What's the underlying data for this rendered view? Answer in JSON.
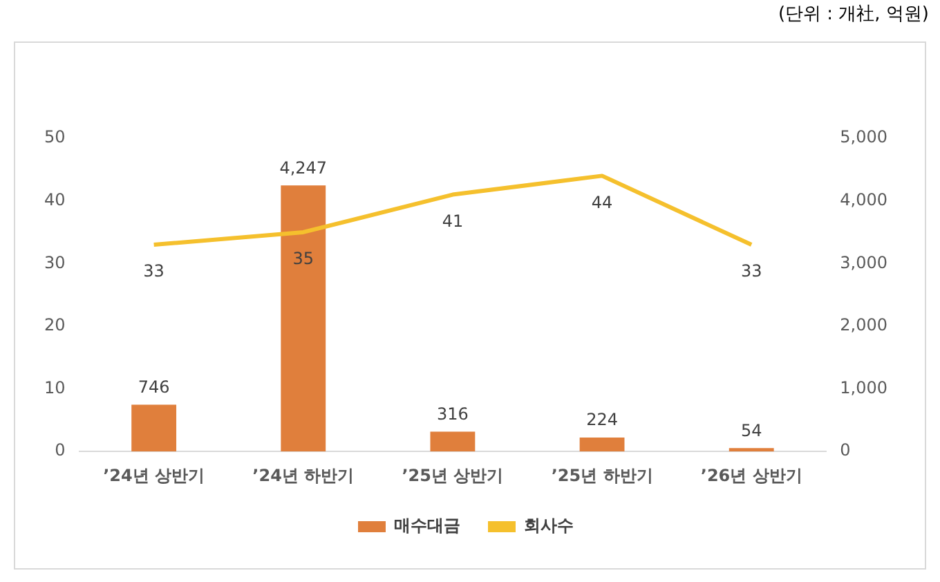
{
  "chart_data": {
    "type": "bar",
    "categories": [
      "’24년 상반기",
      "’24년 하반기",
      "’25년 상반기",
      "’25년 하반기",
      "’26년 상반기"
    ],
    "series": [
      {
        "name": "매수대금",
        "axis": "y2",
        "color": "#e07f3c",
        "values": [
          746,
          4247,
          316,
          224,
          54
        ],
        "value_labels": [
          "746",
          "4,247",
          "316",
          "224",
          "54"
        ]
      },
      {
        "name": "회사수",
        "type": "line",
        "axis": "y",
        "color": "#f5c02d",
        "values": [
          33,
          35,
          41,
          44,
          33
        ],
        "value_labels": [
          "33",
          "35",
          "41",
          "44",
          "33"
        ]
      }
    ],
    "ylim": [
      0,
      50
    ],
    "yticks": [
      0,
      10,
      20,
      30,
      40,
      50
    ],
    "y2lim": [
      0,
      5000
    ],
    "y2ticks": [
      0,
      {
        "value": 1000,
        "label": "1,000"
      },
      {
        "value": 2000,
        "label": "2,000"
      },
      {
        "value": 3000,
        "label": "3,000"
      },
      {
        "value": 4000,
        "label": "4,000"
      },
      {
        "value": 5000,
        "label": "5,000"
      }
    ],
    "grid": false,
    "legend": "bottom",
    "marker": "none",
    "annotations": [
      "(단위 : 개社, 억원)"
    ]
  }
}
